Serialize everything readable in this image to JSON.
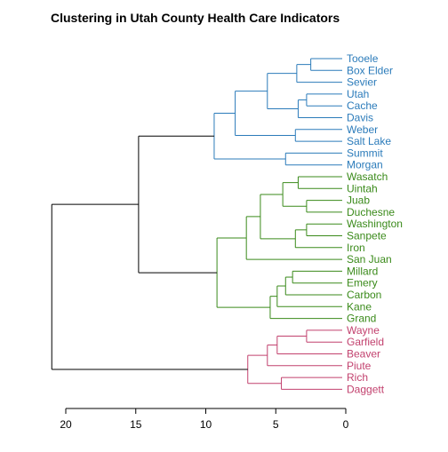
{
  "chart_data": {
    "type": "dendrogram",
    "title": "Clustering in Utah County Health Care Indicators",
    "orientation": "horizontal",
    "xlim": [
      21,
      0
    ],
    "x_ticks": [
      20,
      15,
      10,
      5,
      0
    ],
    "colors": {
      "root": "#000000",
      "blue": "#2b7bba",
      "green": "#3a8a1a",
      "pink": "#c2416e"
    },
    "leaves": [
      {
        "label": "Tooele",
        "color": "blue"
      },
      {
        "label": "Box Elder",
        "color": "blue"
      },
      {
        "label": "Sevier",
        "color": "blue"
      },
      {
        "label": "Utah",
        "color": "blue"
      },
      {
        "label": "Cache",
        "color": "blue"
      },
      {
        "label": "Davis",
        "color": "blue"
      },
      {
        "label": "Weber",
        "color": "blue"
      },
      {
        "label": "Salt Lake",
        "color": "blue"
      },
      {
        "label": "Summit",
        "color": "blue"
      },
      {
        "label": "Morgan",
        "color": "blue"
      },
      {
        "label": "Wasatch",
        "color": "green"
      },
      {
        "label": "Uintah",
        "color": "green"
      },
      {
        "label": "Juab",
        "color": "green"
      },
      {
        "label": "Duchesne",
        "color": "green"
      },
      {
        "label": "Washington",
        "color": "green"
      },
      {
        "label": "Sanpete",
        "color": "green"
      },
      {
        "label": "Iron",
        "color": "green"
      },
      {
        "label": "San Juan",
        "color": "green"
      },
      {
        "label": "Millard",
        "color": "green"
      },
      {
        "label": "Emery",
        "color": "green"
      },
      {
        "label": "Carbon",
        "color": "green"
      },
      {
        "label": "Kane",
        "color": "green"
      },
      {
        "label": "Grand",
        "color": "green"
      },
      {
        "label": "Wayne",
        "color": "pink"
      },
      {
        "label": "Garfield",
        "color": "pink"
      },
      {
        "label": "Beaver",
        "color": "pink"
      },
      {
        "label": "Piute",
        "color": "pink"
      },
      {
        "label": "Rich",
        "color": "pink"
      },
      {
        "label": "Daggett",
        "color": "pink"
      }
    ],
    "merges": [
      {
        "a": 0,
        "b": 1,
        "height": 2.5,
        "color": "blue"
      },
      {
        "a": 3,
        "b": 4,
        "height": 2.8,
        "color": "blue"
      },
      {
        "a": -1,
        "b": 2,
        "height": 3.5,
        "color": "blue"
      },
      {
        "a": -2,
        "b": 5,
        "height": 3.4,
        "color": "blue"
      },
      {
        "a": -3,
        "b": -4,
        "height": 5.6,
        "color": "blue"
      },
      {
        "a": 6,
        "b": 7,
        "height": 3.6,
        "color": "blue"
      },
      {
        "a": -5,
        "b": -6,
        "height": 7.9,
        "color": "blue"
      },
      {
        "a": 8,
        "b": 9,
        "height": 4.3,
        "color": "blue"
      },
      {
        "a": -7,
        "b": -8,
        "height": 9.4,
        "color": "blue"
      },
      {
        "a": 10,
        "b": 11,
        "height": 3.4,
        "color": "green"
      },
      {
        "a": 12,
        "b": 13,
        "height": 2.8,
        "color": "green"
      },
      {
        "a": -10,
        "b": -11,
        "height": 4.5,
        "color": "green"
      },
      {
        "a": 14,
        "b": 15,
        "height": 2.8,
        "color": "green"
      },
      {
        "a": -13,
        "b": 16,
        "height": 3.6,
        "color": "green"
      },
      {
        "a": -12,
        "b": -14,
        "height": 6.1,
        "color": "green"
      },
      {
        "a": -15,
        "b": 17,
        "height": 7.1,
        "color": "green"
      },
      {
        "a": 18,
        "b": 19,
        "height": 3.8,
        "color": "green"
      },
      {
        "a": -17,
        "b": 20,
        "height": 4.3,
        "color": "green"
      },
      {
        "a": -18,
        "b": 21,
        "height": 4.9,
        "color": "green"
      },
      {
        "a": -19,
        "b": 22,
        "height": 5.4,
        "color": "green"
      },
      {
        "a": -16,
        "b": -20,
        "height": 9.2,
        "color": "green"
      },
      {
        "a": -9,
        "b": -21,
        "height": 14.8,
        "color": "root"
      },
      {
        "a": 23,
        "b": 24,
        "height": 2.8,
        "color": "pink"
      },
      {
        "a": -23,
        "b": 25,
        "height": 4.9,
        "color": "pink"
      },
      {
        "a": -24,
        "b": 26,
        "height": 5.6,
        "color": "pink"
      },
      {
        "a": 27,
        "b": 28,
        "height": 4.6,
        "color": "pink"
      },
      {
        "a": -25,
        "b": -26,
        "height": 7.0,
        "color": "pink"
      },
      {
        "a": -22,
        "b": -27,
        "height": 21.0,
        "color": "root"
      }
    ]
  }
}
